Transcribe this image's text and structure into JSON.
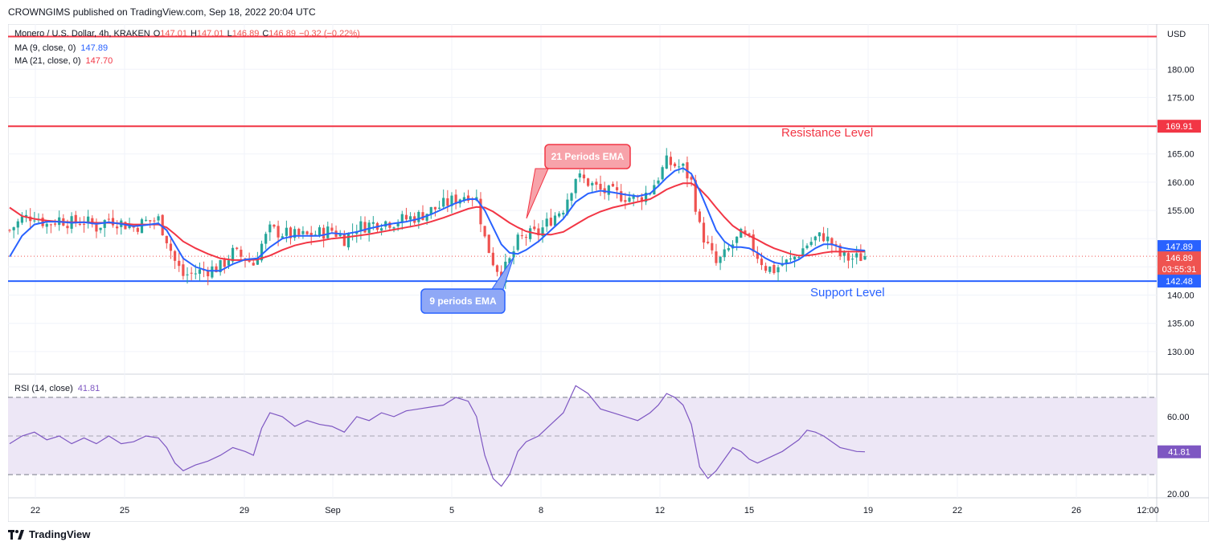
{
  "header": {
    "publisher_line": "CROWNGIMS published on TradingView.com, Sep 18, 2022 20:04 UTC"
  },
  "legend": {
    "symbol": "Monero / U.S. Dollar, 4h, KRAKEN",
    "ohlc": {
      "o_label": "O",
      "o": "147.01",
      "h_label": "H",
      "h": "147.01",
      "l_label": "L",
      "l": "146.89",
      "c_label": "C",
      "c": "146.89",
      "change": "−0.32 (−0.22%)"
    },
    "ma9_label": "MA (9, close, 0)",
    "ma9_value": "147.89",
    "ma21_label": "MA (21, close, 0)",
    "ma21_value": "147.70",
    "rsi_label": "RSI (14, close)",
    "rsi_value": "41.81"
  },
  "footer": {
    "brand": "TradingView"
  },
  "colors": {
    "up": "#26a69a",
    "down": "#ef5350",
    "ma9": "#2962ff",
    "ma21": "#f23645",
    "resistance": "#f23645",
    "support": "#2962ff",
    "rsi_line": "#7e57c2",
    "rsi_band": "#ede7f6"
  },
  "chart_data": [
    {
      "type": "candlestick",
      "currency": "USD",
      "price_axis_ticks": [
        "180.00",
        "175.00",
        "165.00",
        "160.00",
        "155.00",
        "140.00",
        "135.00",
        "130.00"
      ],
      "time_axis_ticks": [
        "22",
        "25",
        "29",
        "Sep",
        "5",
        "8",
        "12",
        "15",
        "19",
        "22",
        "26",
        "12:00"
      ],
      "ylim": [
        126,
        188
      ],
      "price_labels": {
        "resistance": "169.91",
        "ma9": "147.89",
        "ma21": "147.70",
        "last": "146.89",
        "countdown": "03:55:31",
        "support": "142.48"
      },
      "top_line_price": 185.8,
      "resistance_price": 169.91,
      "support_price": 142.48,
      "last_price": 146.89,
      "annotations": {
        "resistance": "Resistance Level",
        "support": "Support Level",
        "ema21": "21 Periods EMA",
        "ema9": "9 periods EMA"
      },
      "close_path": [
        [
          0,
          151.5
        ],
        [
          3,
          153.5
        ],
        [
          6,
          154.2
        ],
        [
          9,
          152.5
        ],
        [
          12,
          153.5
        ],
        [
          15,
          152.8
        ],
        [
          18,
          153.2
        ],
        [
          21,
          152.0
        ],
        [
          24,
          153.6
        ],
        [
          27,
          152.8
        ],
        [
          30,
          152.0
        ],
        [
          33,
          153.0
        ],
        [
          36,
          153.4
        ],
        [
          38,
          150.0
        ],
        [
          40,
          146.0
        ],
        [
          42,
          143.5
        ],
        [
          45,
          144.0
        ],
        [
          48,
          144.5
        ],
        [
          51,
          145.0
        ],
        [
          54,
          147.5
        ],
        [
          57,
          146.5
        ],
        [
          59,
          145.5
        ],
        [
          61,
          149.0
        ],
        [
          63,
          151.5
        ],
        [
          66,
          151.0
        ],
        [
          69,
          150.5
        ],
        [
          72,
          150.5
        ],
        [
          75,
          151.0
        ],
        [
          78,
          151.5
        ],
        [
          81,
          150.0
        ],
        [
          84,
          152.0
        ],
        [
          87,
          152.5
        ],
        [
          90,
          153.0
        ],
        [
          93,
          153.0
        ],
        [
          96,
          153.5
        ],
        [
          99,
          154.0
        ],
        [
          102,
          155.0
        ],
        [
          105,
          156.0
        ],
        [
          108,
          157.0
        ],
        [
          111,
          158.0
        ],
        [
          113,
          157.0
        ],
        [
          115,
          150.0
        ],
        [
          117,
          146.0
        ],
        [
          119,
          143.5
        ],
        [
          121,
          146.0
        ],
        [
          123,
          149.5
        ],
        [
          125,
          150.5
        ],
        [
          128,
          151.0
        ],
        [
          131,
          153.5
        ],
        [
          134,
          155.5
        ],
        [
          137,
          161.0
        ],
        [
          140,
          160.0
        ],
        [
          143,
          158.5
        ],
        [
          146,
          158.0
        ],
        [
          149,
          157.5
        ],
        [
          152,
          157.0
        ],
        [
          155,
          158.5
        ],
        [
          157,
          161.0
        ],
        [
          159,
          163.5
        ],
        [
          161,
          163.0
        ],
        [
          163,
          162.5
        ],
        [
          165,
          160.0
        ],
        [
          167,
          152.0
        ],
        [
          169,
          148.5
        ],
        [
          171,
          145.5
        ],
        [
          173,
          147.0
        ],
        [
          175,
          149.0
        ],
        [
          177,
          150.5
        ],
        [
          179,
          149.5
        ],
        [
          181,
          147.0
        ],
        [
          183,
          145.0
        ],
        [
          185,
          144.5
        ],
        [
          187,
          145.5
        ],
        [
          189,
          146.0
        ],
        [
          191,
          147.5
        ],
        [
          193,
          149.0
        ],
        [
          195,
          150.0
        ],
        [
          197,
          150.5
        ],
        [
          199,
          149.0
        ],
        [
          201,
          147.0
        ],
        [
          203,
          146.5
        ],
        [
          205,
          146.5
        ],
        [
          207,
          147.0
        ]
      ],
      "ma9": [
        [
          0,
          146.8
        ],
        [
          3,
          150.5
        ],
        [
          6,
          152.5
        ],
        [
          9,
          153.0
        ],
        [
          12,
          153.0
        ],
        [
          15,
          152.8
        ],
        [
          18,
          152.9
        ],
        [
          21,
          152.6
        ],
        [
          24,
          152.9
        ],
        [
          27,
          152.6
        ],
        [
          30,
          152.2
        ],
        [
          33,
          152.4
        ],
        [
          36,
          152.7
        ],
        [
          38,
          151.5
        ],
        [
          40,
          149.0
        ],
        [
          42,
          146.5
        ],
        [
          45,
          145.0
        ],
        [
          48,
          144.3
        ],
        [
          51,
          144.3
        ],
        [
          54,
          145.5
        ],
        [
          57,
          146.3
        ],
        [
          60,
          146.5
        ],
        [
          63,
          148.5
        ],
        [
          66,
          150.0
        ],
        [
          69,
          150.5
        ],
        [
          72,
          150.5
        ],
        [
          75,
          150.5
        ],
        [
          78,
          151.0
        ],
        [
          81,
          150.8
        ],
        [
          84,
          151.2
        ],
        [
          87,
          151.8
        ],
        [
          90,
          152.3
        ],
        [
          93,
          152.7
        ],
        [
          96,
          153.0
        ],
        [
          99,
          153.5
        ],
        [
          102,
          154.3
        ],
        [
          105,
          155.3
        ],
        [
          108,
          156.3
        ],
        [
          111,
          157.0
        ],
        [
          113,
          157.0
        ],
        [
          115,
          155.0
        ],
        [
          117,
          152.0
        ],
        [
          119,
          149.0
        ],
        [
          121,
          147.5
        ],
        [
          123,
          147.3
        ],
        [
          125,
          148.0
        ],
        [
          128,
          149.5
        ],
        [
          131,
          151.5
        ],
        [
          134,
          153.5
        ],
        [
          137,
          156.5
        ],
        [
          140,
          158.0
        ],
        [
          143,
          158.5
        ],
        [
          146,
          158.2
        ],
        [
          149,
          157.8
        ],
        [
          152,
          157.5
        ],
        [
          155,
          158.0
        ],
        [
          157,
          159.3
        ],
        [
          159,
          160.8
        ],
        [
          161,
          162.0
        ],
        [
          163,
          162.5
        ],
        [
          165,
          161.5
        ],
        [
          167,
          158.5
        ],
        [
          169,
          155.0
        ],
        [
          171,
          151.5
        ],
        [
          173,
          149.5
        ],
        [
          175,
          148.5
        ],
        [
          177,
          148.5
        ],
        [
          179,
          148.3
        ],
        [
          181,
          147.5
        ],
        [
          183,
          146.5
        ],
        [
          185,
          145.8
        ],
        [
          187,
          145.5
        ],
        [
          189,
          145.7
        ],
        [
          191,
          146.3
        ],
        [
          193,
          147.3
        ],
        [
          195,
          148.3
        ],
        [
          197,
          149.0
        ],
        [
          199,
          149.0
        ],
        [
          201,
          148.5
        ],
        [
          203,
          148.2
        ],
        [
          205,
          148.0
        ],
        [
          207,
          147.9
        ]
      ],
      "ma21": [
        [
          0,
          155.5
        ],
        [
          3,
          154.0
        ],
        [
          6,
          153.5
        ],
        [
          9,
          153.2
        ],
        [
          12,
          153.0
        ],
        [
          15,
          152.9
        ],
        [
          18,
          152.9
        ],
        [
          21,
          152.8
        ],
        [
          24,
          152.8
        ],
        [
          27,
          152.7
        ],
        [
          30,
          152.5
        ],
        [
          33,
          152.5
        ],
        [
          36,
          152.5
        ],
        [
          38,
          152.0
        ],
        [
          40,
          150.8
        ],
        [
          42,
          149.5
        ],
        [
          45,
          148.3
        ],
        [
          48,
          147.3
        ],
        [
          51,
          146.5
        ],
        [
          54,
          146.2
        ],
        [
          57,
          146.2
        ],
        [
          60,
          146.3
        ],
        [
          63,
          147.0
        ],
        [
          66,
          148.0
        ],
        [
          69,
          148.8
        ],
        [
          72,
          149.3
        ],
        [
          75,
          149.6
        ],
        [
          78,
          150.0
        ],
        [
          81,
          150.2
        ],
        [
          84,
          150.5
        ],
        [
          87,
          150.8
        ],
        [
          90,
          151.2
        ],
        [
          93,
          151.6
        ],
        [
          96,
          152.0
        ],
        [
          99,
          152.4
        ],
        [
          102,
          153.0
        ],
        [
          105,
          153.7
        ],
        [
          108,
          154.5
        ],
        [
          111,
          155.3
        ],
        [
          113,
          155.6
        ],
        [
          115,
          155.5
        ],
        [
          117,
          154.8
        ],
        [
          119,
          153.8
        ],
        [
          121,
          152.8
        ],
        [
          123,
          152.0
        ],
        [
          125,
          151.3
        ],
        [
          128,
          150.8
        ],
        [
          131,
          150.7
        ],
        [
          134,
          151.2
        ],
        [
          137,
          152.5
        ],
        [
          140,
          153.8
        ],
        [
          143,
          154.8
        ],
        [
          146,
          155.5
        ],
        [
          149,
          156.0
        ],
        [
          152,
          156.5
        ],
        [
          155,
          157.0
        ],
        [
          157,
          157.8
        ],
        [
          159,
          158.7
        ],
        [
          161,
          159.3
        ],
        [
          163,
          159.8
        ],
        [
          165,
          159.8
        ],
        [
          167,
          158.8
        ],
        [
          169,
          157.3
        ],
        [
          171,
          155.5
        ],
        [
          173,
          153.8
        ],
        [
          175,
          152.3
        ],
        [
          177,
          151.3
        ],
        [
          179,
          150.5
        ],
        [
          181,
          149.8
        ],
        [
          183,
          149.0
        ],
        [
          185,
          148.3
        ],
        [
          187,
          147.8
        ],
        [
          189,
          147.3
        ],
        [
          191,
          147.0
        ],
        [
          193,
          147.0
        ],
        [
          195,
          147.2
        ],
        [
          197,
          147.5
        ],
        [
          199,
          147.7
        ],
        [
          201,
          147.7
        ],
        [
          203,
          147.7
        ],
        [
          205,
          147.7
        ],
        [
          207,
          147.7
        ]
      ],
      "ma9_name": "MA (9, close, 0)",
      "ma21_name": "MA (21, close, 0)"
    },
    {
      "type": "line",
      "name": "RSI (14, close)",
      "ylim": [
        18,
        82
      ],
      "y_ticks": [
        "60.00",
        "20.00"
      ],
      "band": [
        30,
        70
      ],
      "midline": 50,
      "value_label": "41.81",
      "points": [
        [
          0,
          46
        ],
        [
          3,
          50
        ],
        [
          6,
          52
        ],
        [
          9,
          48
        ],
        [
          12,
          50
        ],
        [
          15,
          46
        ],
        [
          18,
          49
        ],
        [
          21,
          46
        ],
        [
          24,
          50
        ],
        [
          27,
          46
        ],
        [
          30,
          47
        ],
        [
          33,
          50
        ],
        [
          36,
          49
        ],
        [
          38,
          44
        ],
        [
          40,
          36
        ],
        [
          42,
          32
        ],
        [
          45,
          35
        ],
        [
          48,
          37
        ],
        [
          51,
          40
        ],
        [
          54,
          44
        ],
        [
          57,
          42
        ],
        [
          59,
          40
        ],
        [
          61,
          54
        ],
        [
          63,
          62
        ],
        [
          66,
          60
        ],
        [
          69,
          55
        ],
        [
          72,
          58
        ],
        [
          75,
          56
        ],
        [
          78,
          55
        ],
        [
          81,
          52
        ],
        [
          84,
          60
        ],
        [
          87,
          58
        ],
        [
          90,
          62
        ],
        [
          93,
          60
        ],
        [
          96,
          63
        ],
        [
          99,
          64
        ],
        [
          102,
          65
        ],
        [
          105,
          66
        ],
        [
          108,
          70
        ],
        [
          111,
          68
        ],
        [
          113,
          60
        ],
        [
          115,
          40
        ],
        [
          117,
          28
        ],
        [
          119,
          24
        ],
        [
          121,
          30
        ],
        [
          123,
          42
        ],
        [
          125,
          47
        ],
        [
          128,
          50
        ],
        [
          131,
          56
        ],
        [
          134,
          62
        ],
        [
          137,
          76
        ],
        [
          140,
          72
        ],
        [
          143,
          64
        ],
        [
          146,
          62
        ],
        [
          149,
          60
        ],
        [
          152,
          58
        ],
        [
          155,
          62
        ],
        [
          157,
          66
        ],
        [
          159,
          72
        ],
        [
          161,
          70
        ],
        [
          163,
          66
        ],
        [
          165,
          56
        ],
        [
          167,
          34
        ],
        [
          169,
          28
        ],
        [
          171,
          32
        ],
        [
          173,
          38
        ],
        [
          175,
          44
        ],
        [
          177,
          42
        ],
        [
          179,
          38
        ],
        [
          181,
          36
        ],
        [
          183,
          38
        ],
        [
          185,
          40
        ],
        [
          187,
          42
        ],
        [
          189,
          45
        ],
        [
          191,
          48
        ],
        [
          193,
          53
        ],
        [
          195,
          52
        ],
        [
          197,
          50
        ],
        [
          199,
          47
        ],
        [
          201,
          44
        ],
        [
          203,
          43
        ],
        [
          205,
          42
        ],
        [
          207,
          41.81
        ]
      ]
    }
  ]
}
